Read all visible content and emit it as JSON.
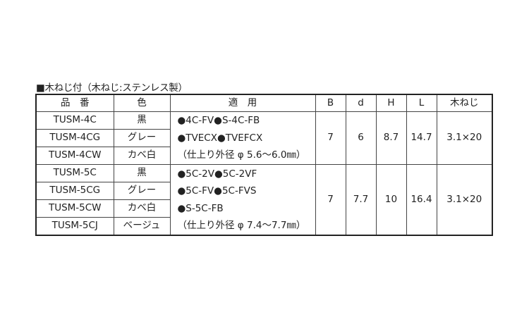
{
  "title": "■木ねじ付（木ねじ:ステンレス製）",
  "headers": [
    "品　番",
    "色",
    "適　用",
    "B",
    "d",
    "H",
    "L",
    "木ねじ"
  ],
  "groups": [
    {
      "rows": [
        {
          "part": "TUSM-4C",
          "color": "黒"
        },
        {
          "part": "TUSM-4CG",
          "color": "グレー"
        },
        {
          "part": "TUSM-4CW",
          "color": "カベ白"
        }
      ],
      "application": [
        "●4C-FV●S-4C-FB",
        "●TVECX●TVEFCX",
        "（仕上り外径 φ 5.6～6.0㎜）"
      ],
      "B": "7",
      "d": "6",
      "H": "8.7",
      "L": "14.7",
      "screw": "3.1×20"
    },
    {
      "rows": [
        {
          "part": "TUSM-5C",
          "color": "黒"
        },
        {
          "part": "TUSM-5CG",
          "color": "グレー"
        },
        {
          "part": "TUSM-5CW",
          "color": "カベ白"
        },
        {
          "part": "TUSM-5CJ",
          "color": "ベージュ"
        }
      ],
      "application": [
        "●5C-2V●5C-2VF",
        "●5C-FV●5C-FVS",
        "●S-5C-FB",
        "（仕上り外径 φ 7.4～7.7㎜）"
      ],
      "B": "7",
      "d": "7.7",
      "H": "10",
      "L": "16.4",
      "screw": "3.1×20"
    }
  ]
}
